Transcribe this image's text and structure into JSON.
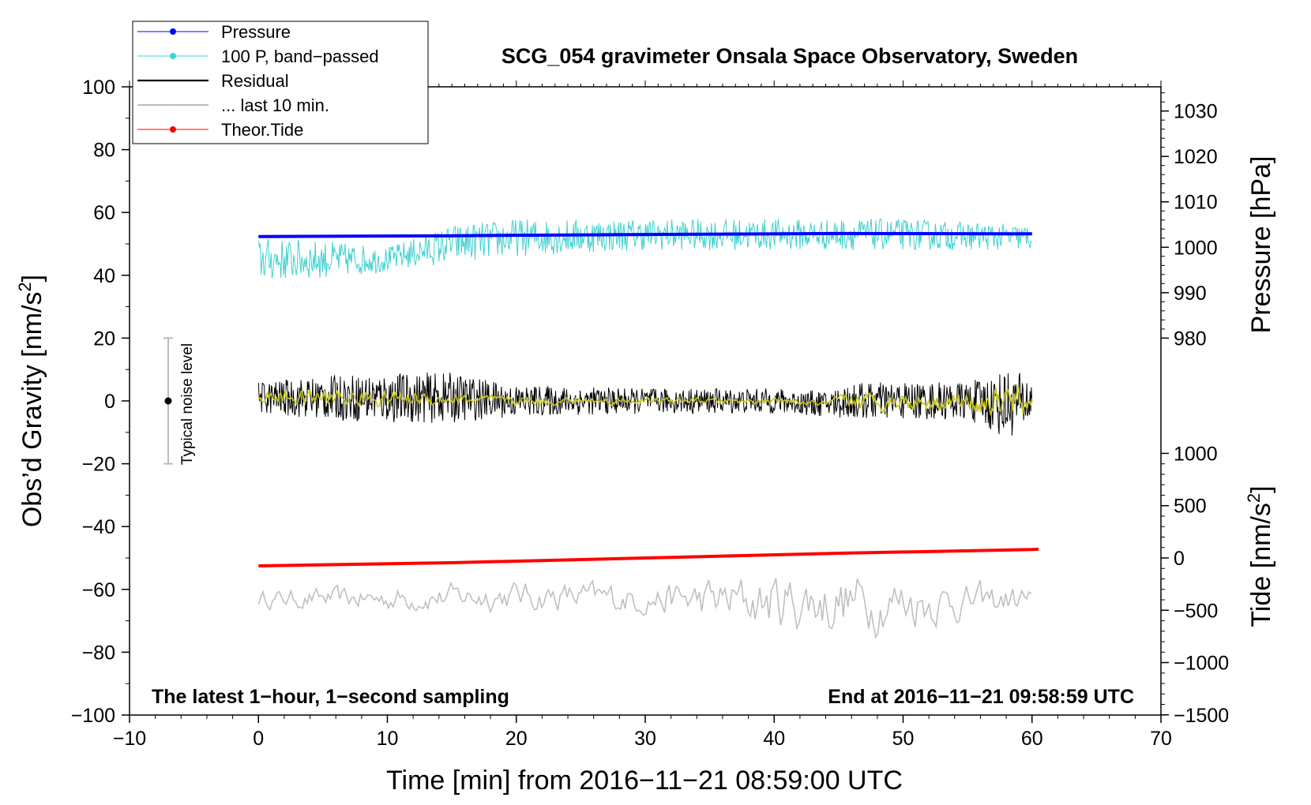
{
  "chart_data": {
    "type": "line",
    "title": "SCG_054 gravimeter Onsala Space Observatory, Sweden",
    "xlabel": "Time [min] from 2016−11−21 08:59:00 UTC",
    "ylabel_left_main": "Obs’d Gravity [nm/s",
    "ylabel_left_sup": "2",
    "ylabel_left_end": "]",
    "ylabel_right_pressure": "Pressure [hPa]",
    "ylabel_right_tide_main": "Tide [nm/s",
    "ylabel_right_tide_sup": "2",
    "ylabel_right_tide_end": "]",
    "xlim": [
      -10,
      70
    ],
    "ylim_left": [
      -100,
      100
    ],
    "x_ticks": [
      "−10",
      "0",
      "10",
      "20",
      "30",
      "40",
      "50",
      "60",
      "70"
    ],
    "y_ticks_left": [
      "100",
      "80",
      "60",
      "40",
      "20",
      "0",
      "−20",
      "−40",
      "−60",
      "−80",
      "−100"
    ],
    "pressure_ticks": [
      "1030",
      "1020",
      "1010",
      "1000",
      "990",
      "980"
    ],
    "tide_ticks": [
      "1000",
      "500",
      "0",
      "−500",
      "−1000",
      "−1500"
    ],
    "annotation_left": "The latest 1−hour, 1−second sampling",
    "annotation_right": "End at 2016−11−21 09:58:59 UTC",
    "noise_label": "Typical noise level",
    "noise_bar": {
      "x": -7,
      "center": 0,
      "low": -20,
      "high": 20
    },
    "legend": [
      {
        "label": "Pressure",
        "color": "#0000ff",
        "marker": true
      },
      {
        "label": "100 P, band−passed",
        "color": "#40d0d0",
        "marker": true
      },
      {
        "label": "Residual",
        "color": "#000000",
        "marker": false
      },
      {
        "label": "... last 10 min.",
        "color": "#c0c0c0",
        "marker": false
      },
      {
        "label": "Theor.Tide",
        "color": "#ff0000",
        "marker": true
      }
    ],
    "series": [
      {
        "name": "Pressure",
        "color": "#0000ff",
        "x": [
          0,
          15,
          30,
          45,
          60
        ],
        "values": [
          52.3,
          52.6,
          53.0,
          53.3,
          53.2
        ]
      },
      {
        "name": "100 P, band−passed",
        "color": "#40d0d0",
        "x": [
          0,
          5,
          10,
          15,
          20,
          30,
          40,
          50,
          60
        ],
        "center": [
          45,
          45,
          45,
          50,
          52,
          53,
          53,
          53,
          52
        ],
        "amplitude": [
          7,
          6,
          4,
          6,
          6,
          5,
          5,
          5,
          4
        ]
      },
      {
        "name": "Residual",
        "color": "#000000",
        "x": [
          0,
          5,
          10,
          15,
          20,
          30,
          40,
          44,
          46,
          55,
          58,
          60
        ],
        "center": [
          1,
          1,
          1,
          1,
          0,
          0,
          0,
          -1,
          0,
          0,
          -1,
          0
        ],
        "amplitude": [
          5,
          7,
          8,
          8,
          5,
          4,
          4,
          4,
          6,
          6,
          11,
          8
        ]
      },
      {
        "name": "Residual (smoothed)",
        "color": "#c8c820",
        "x": [
          0,
          5,
          10,
          15,
          20,
          30,
          40,
          44,
          46,
          55,
          58,
          60
        ],
        "center": [
          1,
          1,
          1,
          0.5,
          0,
          0,
          0,
          -1,
          0,
          0,
          -1,
          0
        ],
        "amplitude": [
          2,
          3,
          2.5,
          2,
          1.5,
          1,
          1,
          1,
          3,
          3,
          7,
          5
        ]
      },
      {
        "name": "... last 10 min.",
        "color": "#c0c0c0",
        "x": [
          0,
          10,
          20,
          30,
          40,
          45,
          50,
          55,
          60
        ],
        "center": [
          -63,
          -63,
          -62,
          -63,
          -64,
          -64,
          -64,
          -64,
          -63
        ],
        "amplitude": [
          3,
          4,
          5,
          5,
          10,
          11,
          9,
          6,
          5
        ]
      },
      {
        "name": "Theor.Tide",
        "color": "#ff0000",
        "x": [
          0,
          15,
          30,
          45,
          60,
          60.5
        ],
        "values": [
          -52.5,
          -51.5,
          -50,
          -48.5,
          -47.3,
          -47.2
        ]
      }
    ]
  }
}
